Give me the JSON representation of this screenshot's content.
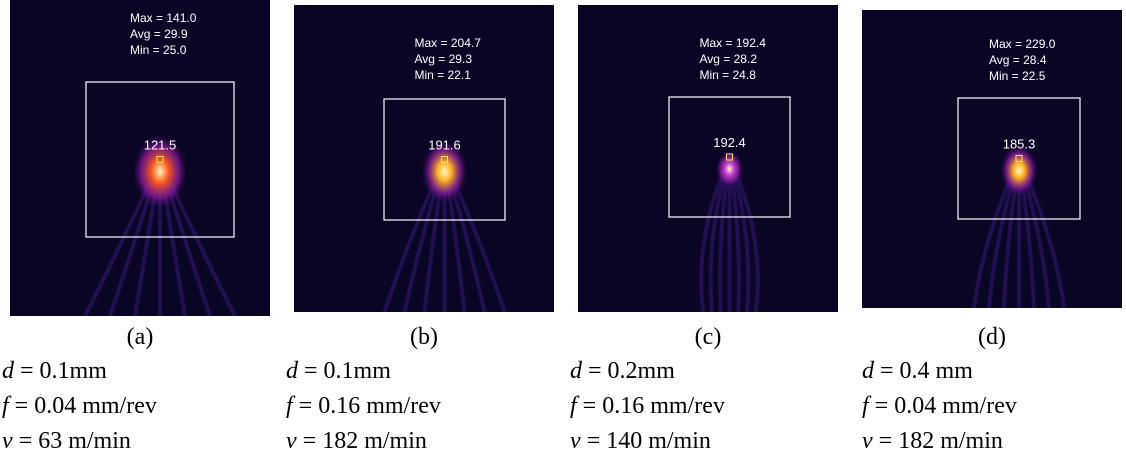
{
  "panels": [
    {
      "stats": [
        "Max = 141.0",
        "Avg = 29.9",
        "Min = 25.0"
      ],
      "center": "121.5",
      "caption": "(a)",
      "params": [
        {
          "var": "d",
          "text": " = 0.1mm"
        },
        {
          "var": "f",
          "text": " = 0.04 mm/rev"
        },
        {
          "var": "v",
          "text": " = 63 m/min"
        }
      ]
    },
    {
      "stats": [
        "Max = 204.7",
        "Avg = 29.3",
        "Min = 22.1"
      ],
      "center": "191.6",
      "caption": "(b)",
      "params": [
        {
          "var": "d",
          "text": " = 0.1mm"
        },
        {
          "var": "f",
          "text": " = 0.16 mm/rev"
        },
        {
          "var": "v",
          "text": " = 182 m/min"
        }
      ]
    },
    {
      "stats": [
        "Max = 192.4",
        "Avg = 28.2",
        "Min = 24.8"
      ],
      "center": "192.4",
      "caption": "(c)",
      "params": [
        {
          "var": "d",
          "text": " = 0.2mm"
        },
        {
          "var": "f",
          "text": " = 0.16 mm/rev"
        },
        {
          "var": "v",
          "text": " = 140 m/min"
        }
      ]
    },
    {
      "stats": [
        "Max = 229.0",
        "Avg = 28.4",
        "Min = 22.5"
      ],
      "center": "185.3",
      "caption": "(d)",
      "params": [
        {
          "var": "d",
          "text": " = 0.4 mm"
        },
        {
          "var": "f",
          "text": " = 0.04 mm/rev"
        },
        {
          "var": "v",
          "text": " = 182 m/min"
        }
      ]
    }
  ]
}
